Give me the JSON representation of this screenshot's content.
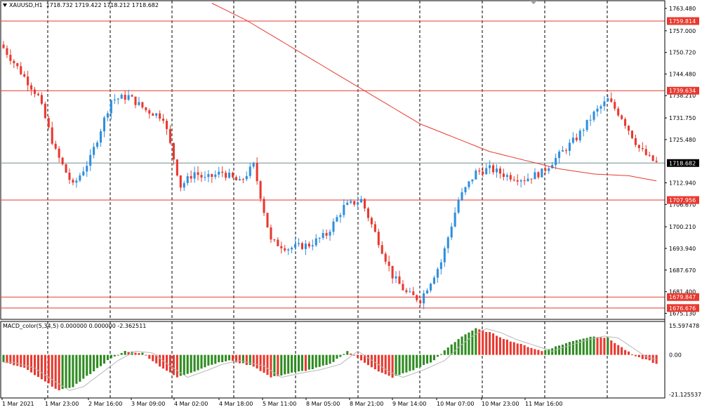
{
  "symbol": {
    "label": "XAUUSD,H1",
    "ohlc": "1718.732 1719.422 1718.212 1718.682",
    "dropdown_icon": "triangle-down-icon"
  },
  "macd": {
    "label": "MACD_color(5,34,5) 0.000000 0.000000 -2.362511",
    "scale": [
      "15.597478",
      "0.00",
      "-21.125537"
    ]
  },
  "colors": {
    "bull": "#2f8fde",
    "bear": "#e8392f",
    "level_line": "#e8392f",
    "current_line": "#6f8f8f",
    "ma": "#e8392f",
    "macd_up": "#2e8b20",
    "macd_down": "#e8392f",
    "grid": "#000000"
  },
  "chart_data": {
    "type": "candlestick",
    "title": "XAUUSD,H1",
    "ylim": [
      1674,
      1765
    ],
    "y_tick_labels": [
      "1763.480",
      "1757.000",
      "1750.720",
      "1744.480",
      "1738.210",
      "1731.750",
      "1725.480",
      "1712.940",
      "1706.670",
      "1700.210",
      "1693.940",
      "1687.670",
      "1681.400",
      "1675.130"
    ],
    "x_tick_labels": [
      "1 Mar 2021",
      "1 Mar 23:00",
      "2 Mar 16:00",
      "3 Mar 09:00",
      "4 Mar 02:00",
      "4 Mar 18:00",
      "5 Mar 11:00",
      "8 Mar 05:00",
      "8 Mar 21:00",
      "9 Mar 14:00",
      "10 Mar 07:00",
      "10 Mar 23:00",
      "11 Mar 16:00"
    ],
    "current_price": "1718.682",
    "price_levels": [
      "1759.814",
      "1739.634",
      "1707.956",
      "1679.847",
      "1676.676"
    ],
    "close_path": [
      [
        0,
        1752
      ],
      [
        5,
        1745
      ],
      [
        10,
        1738
      ],
      [
        15,
        1722
      ],
      [
        20,
        1712
      ],
      [
        25,
        1720
      ],
      [
        31,
        1737
      ],
      [
        36,
        1738
      ],
      [
        41,
        1734
      ],
      [
        46,
        1732
      ],
      [
        51,
        1712
      ],
      [
        55,
        1716
      ],
      [
        58,
        1714
      ],
      [
        63,
        1716
      ],
      [
        68,
        1713
      ],
      [
        72,
        1718
      ],
      [
        77,
        1696
      ],
      [
        82,
        1694
      ],
      [
        88,
        1695
      ],
      [
        93,
        1698
      ],
      [
        98,
        1706
      ],
      [
        103,
        1708
      ],
      [
        108,
        1696
      ],
      [
        112,
        1686
      ],
      [
        116,
        1681
      ],
      [
        120,
        1679
      ],
      [
        126,
        1690
      ],
      [
        131,
        1708
      ],
      [
        136,
        1716
      ],
      [
        140,
        1717
      ],
      [
        145,
        1715
      ],
      [
        150,
        1714
      ],
      [
        155,
        1716
      ],
      [
        160,
        1721
      ],
      [
        165,
        1726
      ],
      [
        170,
        1733
      ],
      [
        174,
        1737
      ],
      [
        178,
        1732
      ],
      [
        183,
        1723
      ],
      [
        186,
        1720
      ],
      [
        188,
        1718.7
      ]
    ],
    "moving_average": [
      [
        60,
        1765
      ],
      [
        70,
        1760
      ],
      [
        80,
        1754
      ],
      [
        90,
        1748
      ],
      [
        100,
        1742
      ],
      [
        110,
        1736
      ],
      [
        120,
        1730
      ],
      [
        130,
        1726
      ],
      [
        140,
        1722
      ],
      [
        150,
        1719.5
      ],
      [
        160,
        1717
      ],
      [
        170,
        1715.5
      ],
      [
        180,
        1715
      ],
      [
        188,
        1713.5
      ]
    ],
    "macd_histogram": [
      [
        0,
        -4
      ],
      [
        6,
        -7
      ],
      [
        10,
        -12
      ],
      [
        16,
        -19
      ],
      [
        20,
        -17
      ],
      [
        25,
        -10
      ],
      [
        30,
        -3
      ],
      [
        35,
        2
      ],
      [
        40,
        1
      ],
      [
        45,
        -6
      ],
      [
        50,
        -12
      ],
      [
        56,
        -8
      ],
      [
        60,
        -5
      ],
      [
        65,
        -3
      ],
      [
        72,
        -6
      ],
      [
        77,
        -12
      ],
      [
        82,
        -10
      ],
      [
        88,
        -8
      ],
      [
        94,
        -5
      ],
      [
        99,
        2
      ],
      [
        104,
        -4
      ],
      [
        108,
        -9
      ],
      [
        112,
        -12
      ],
      [
        118,
        -8
      ],
      [
        124,
        -3
      ],
      [
        128,
        4
      ],
      [
        132,
        10
      ],
      [
        136,
        14
      ],
      [
        140,
        12
      ],
      [
        145,
        8
      ],
      [
        150,
        5
      ],
      [
        155,
        2
      ],
      [
        160,
        5
      ],
      [
        165,
        8
      ],
      [
        170,
        10
      ],
      [
        174,
        9
      ],
      [
        178,
        4
      ],
      [
        182,
        -1
      ],
      [
        186,
        -3
      ],
      [
        188,
        -5
      ]
    ]
  }
}
